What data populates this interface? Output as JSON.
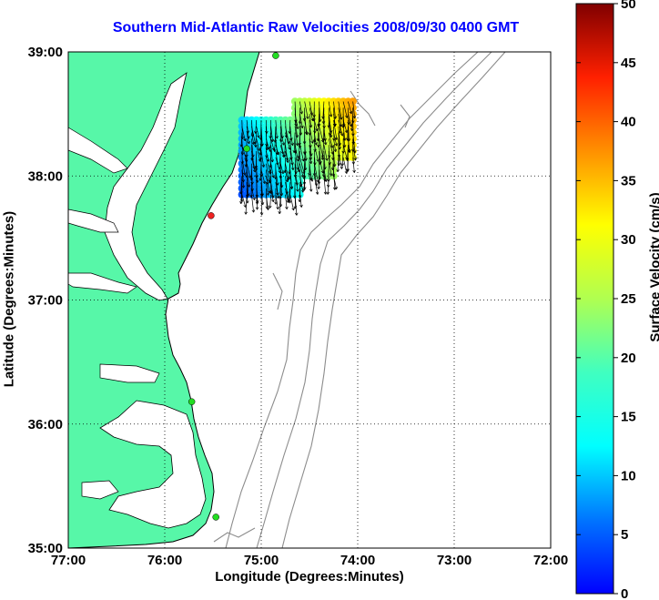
{
  "title": "Southern Mid-Atlantic Raw Velocities 2008/09/30 0400 GMT",
  "map": {
    "xlabel": "Longitude (Degrees:Minutes)",
    "ylabel": "Latitude (Degrees:Minutes)",
    "x_ticks": [
      "77:00",
      "76:00",
      "75:00",
      "74:00",
      "73:00",
      "72:00"
    ],
    "y_ticks": [
      "39:00",
      "38:00",
      "37:00",
      "36:00",
      "35:00"
    ],
    "lon_range": [
      -77,
      -72
    ],
    "lat_range": [
      35,
      39
    ],
    "grid": "dotted",
    "land_color": "#57f7a8",
    "coast_color": "#000000",
    "bathymetry_color": "#8c8c8c"
  },
  "colorbar": {
    "label": "Surface Velocity (cm/s)",
    "ticks": [
      "50",
      "45",
      "40",
      "35",
      "30",
      "25",
      "20",
      "15",
      "10",
      "5",
      "0"
    ],
    "range": [
      0,
      50
    ],
    "colormap": "jet"
  },
  "stations": [
    {
      "lon": -74.85,
      "lat": 38.97,
      "color": "#22dd22"
    },
    {
      "lon": -75.15,
      "lat": 38.22,
      "color": "#22dd22"
    },
    {
      "lon": -75.52,
      "lat": 37.68,
      "color": "#ee2222"
    },
    {
      "lon": -75.72,
      "lat": 36.18,
      "color": "#22dd22"
    },
    {
      "lon": -75.47,
      "lat": 35.25,
      "color": "#22dd22"
    }
  ]
}
